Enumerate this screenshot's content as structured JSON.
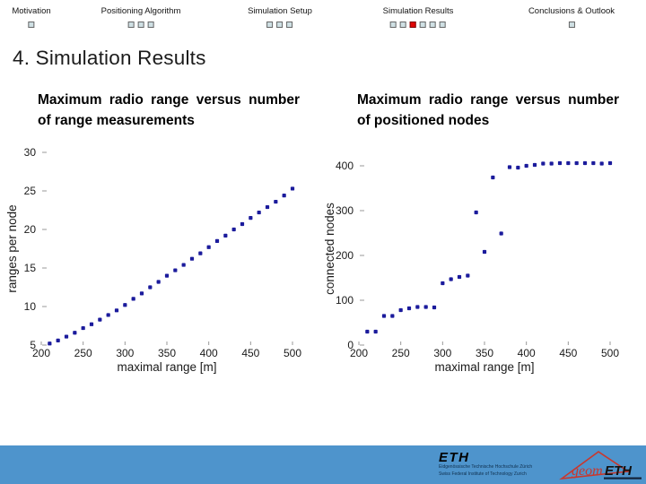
{
  "nav": {
    "sections": [
      {
        "label": "Motivation",
        "markers": [
          "inactive"
        ]
      },
      {
        "label": "Positioning Algorithm",
        "markers": [
          "inactive",
          "inactive",
          "inactive"
        ]
      },
      {
        "label": "Simulation Setup",
        "markers": [
          "inactive",
          "inactive",
          "inactive"
        ]
      },
      {
        "label": "Simulation Results",
        "markers": [
          "inactive",
          "inactive",
          "active",
          "inactive",
          "inactive",
          "inactive"
        ]
      },
      {
        "label": "Conclusions & Outlook",
        "markers": [
          "inactive"
        ]
      }
    ],
    "marker_inactive_color": "#cfe0e4",
    "marker_active_color": "#e00404"
  },
  "slide_title": "4. Simulation Results",
  "chart_data": [
    {
      "type": "scatter",
      "title": "Maximum radio range versus number of range measurements",
      "xlabel": "maximal range [m]",
      "ylabel": "ranges per node",
      "xlim": [
        200,
        500
      ],
      "ylim": [
        5,
        30
      ],
      "xticks": [
        200,
        250,
        300,
        350,
        400,
        450,
        500
      ],
      "yticks": [
        5,
        10,
        15,
        20,
        25,
        30
      ],
      "grid": false,
      "marker_color": "#1b1b9c",
      "x": [
        210,
        220,
        230,
        240,
        250,
        260,
        270,
        280,
        290,
        300,
        310,
        320,
        330,
        340,
        350,
        360,
        370,
        380,
        390,
        400,
        410,
        420,
        430,
        440,
        450,
        460,
        470,
        480,
        490,
        500
      ],
      "y": [
        5.2,
        5.6,
        6.1,
        6.6,
        7.2,
        7.7,
        8.3,
        8.9,
        9.5,
        10.2,
        11.0,
        11.7,
        12.5,
        13.2,
        14.0,
        14.7,
        15.4,
        16.2,
        16.9,
        17.7,
        18.5,
        19.2,
        20.0,
        20.7,
        21.5,
        22.2,
        22.9,
        23.6,
        24.4,
        25.3
      ]
    },
    {
      "type": "scatter",
      "title": "Maximum radio range versus number of positioned nodes",
      "xlabel": "maximal range [m]",
      "ylabel": "connected nodes",
      "xlim": [
        200,
        500
      ],
      "ylim": [
        0,
        430
      ],
      "xticks": [
        200,
        250,
        300,
        350,
        400,
        450,
        500
      ],
      "yticks": [
        0,
        100,
        200,
        300,
        400
      ],
      "grid": false,
      "marker_color": "#1b1b9c",
      "x": [
        210,
        220,
        230,
        240,
        250,
        260,
        270,
        280,
        290,
        300,
        310,
        320,
        330,
        340,
        350,
        360,
        370,
        380,
        390,
        400,
        410,
        420,
        430,
        440,
        450,
        460,
        470,
        480,
        490,
        500
      ],
      "y": [
        30,
        30,
        65,
        65,
        78,
        82,
        85,
        85,
        84,
        138,
        147,
        152,
        155,
        296,
        208,
        374,
        249,
        397,
        396,
        400,
        402,
        405,
        405,
        406,
        406,
        406,
        406,
        406,
        405,
        406
      ]
    }
  ],
  "footer": {
    "bg_color": "#4e94cc",
    "eth": {
      "name": "ETH",
      "line1": "Eidgenössische Technische Hochschule Zürich",
      "line2": "Swiss Federal Institute of Technology Zurich"
    },
    "geometh": {
      "geom": "geom",
      "eth": "ETH"
    }
  }
}
